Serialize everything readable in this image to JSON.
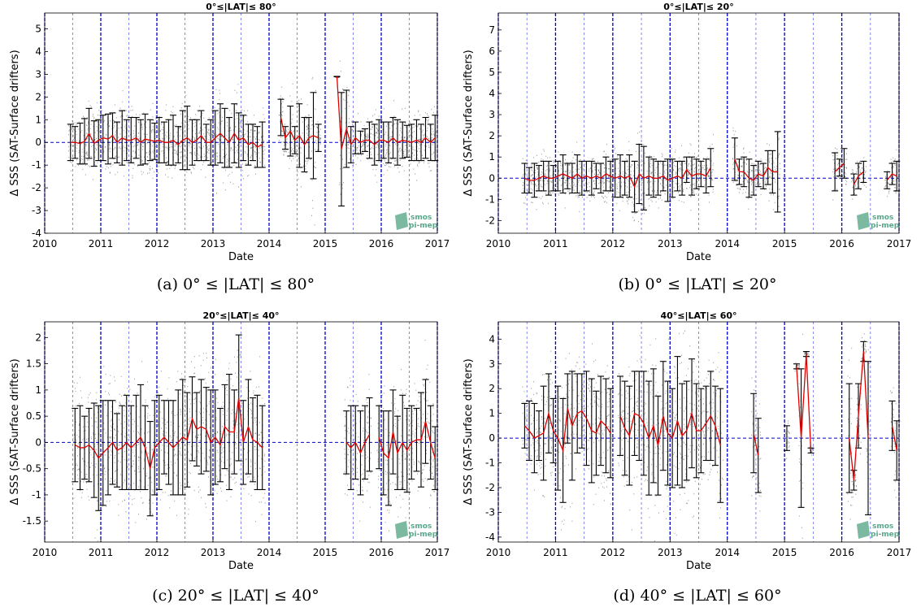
{
  "colors": {
    "mean": "#e00000",
    "error_bar": "#000000",
    "scatter": "#555555",
    "year_line": "#0000cc",
    "half_year_line": "#6a6aee",
    "zero_line": "#0000cc",
    "logo": "#5aa88a"
  },
  "logo": {
    "line1": "smos",
    "line2": "pi-mep"
  },
  "panels": [
    {
      "caption": "(a) 0° ≤ |LAT| ≤ 80°",
      "chart_data": {
        "type": "scatter",
        "title": "0°≤|LAT|≤ 80°",
        "xlabel": "Date",
        "ylabel": "Δ SSS (SAT-Surface drifters)",
        "xlim": [
          2010,
          2017
        ],
        "ylim": [
          -4,
          5.7
        ],
        "xticks": [
          "2010",
          "2011",
          "2012",
          "2013",
          "2014",
          "2015",
          "2016",
          "2017"
        ],
        "yticks": [
          "-4",
          "-3",
          "-2",
          "-1",
          "0",
          "1",
          "2",
          "3",
          "4",
          "5"
        ],
        "grid": "vertical dashed lines at each year and half-year, horizontal dashed zero line",
        "series": [
          {
            "name": "monthly mean",
            "x": [
              2010.46,
              2010.54,
              2010.63,
              2010.71,
              2010.79,
              2010.88,
              2010.96,
              2011.04,
              2011.13,
              2011.21,
              2011.29,
              2011.38,
              2011.46,
              2011.54,
              2011.63,
              2011.71,
              2011.79,
              2011.88,
              2011.96,
              2012.04,
              2012.13,
              2012.21,
              2012.29,
              2012.38,
              2012.46,
              2012.54,
              2012.63,
              2012.71,
              2012.79,
              2012.88,
              2012.96,
              2013.04,
              2013.13,
              2013.21,
              2013.29,
              2013.38,
              2013.46,
              2013.54,
              2013.63,
              2013.71,
              2013.79,
              2013.88,
              2014.21,
              2014.29,
              2014.38,
              2014.46,
              2014.54,
              2014.63,
              2014.71,
              2014.79,
              2014.88,
              2015.21,
              2015.29,
              2015.38,
              2015.46,
              2015.54,
              2015.63,
              2015.71,
              2015.79,
              2015.88,
              2015.96,
              2016.04,
              2016.13,
              2016.21,
              2016.29,
              2016.38,
              2016.46,
              2016.54,
              2016.63,
              2016.71,
              2016.79,
              2016.88,
              2016.96
            ],
            "y": [
              0.0,
              0.0,
              -0.05,
              0.05,
              0.4,
              -0.05,
              0.1,
              0.2,
              0.15,
              0.3,
              0.0,
              0.2,
              0.1,
              0.1,
              0.2,
              0.0,
              0.15,
              0.1,
              0.05,
              0.1,
              0.0,
              0.0,
              0.1,
              -0.1,
              0.1,
              0.2,
              0.0,
              0.1,
              0.3,
              0.0,
              0.0,
              0.2,
              0.4,
              0.2,
              0.0,
              0.4,
              0.1,
              0.2,
              -0.1,
              0.0,
              -0.2,
              -0.1,
              1.1,
              0.2,
              0.5,
              0.1,
              0.3,
              -0.1,
              0.2,
              0.3,
              0.2,
              2.9,
              -0.3,
              0.6,
              -0.1,
              0.2,
              0.0,
              0.1,
              0.1,
              -0.1,
              0.1,
              0.1,
              0.0,
              0.2,
              0.0,
              0.1,
              0.05,
              0.0,
              0.1,
              0.0,
              0.2,
              0.0,
              0.2
            ]
          },
          {
            "name": "std error bars",
            "half_width": [
              0.8,
              0.7,
              0.9,
              1.0,
              1.1,
              1.0,
              0.9,
              1.0,
              1.1,
              1.0,
              0.9,
              1.2,
              0.9,
              1.0,
              0.9,
              1.0,
              1.1,
              0.9,
              0.8,
              1.0,
              0.9,
              1.0,
              1.1,
              0.8,
              1.3,
              1.4,
              1.0,
              0.9,
              1.1,
              0.8,
              1.0,
              1.2,
              1.3,
              1.3,
              1.1,
              1.3,
              1.2,
              1.0,
              0.9,
              0.8,
              0.9,
              1.0,
              0.8,
              0.5,
              1.1,
              0.6,
              1.4,
              1.2,
              0.9,
              1.9,
              0.6,
              0.01,
              2.5,
              1.7,
              0.8,
              0.7,
              0.5,
              0.5,
              0.8,
              0.9,
              0.9,
              0.8,
              0.9,
              0.9,
              1.0,
              0.8,
              0.7,
              0.8,
              0.9,
              0.8,
              0.9,
              0.8,
              1.0
            ]
          }
        ]
      }
    },
    {
      "caption": "(b) 0° ≤ |LAT| ≤ 20°",
      "chart_data": {
        "type": "scatter",
        "title": "0°≤|LAT|≤ 20°",
        "xlabel": "Date",
        "ylabel": "Δ SSS (SAT-Surface drifters)",
        "xlim": [
          2010,
          2017
        ],
        "ylim": [
          -2.6,
          7.8
        ],
        "xticks": [
          "2010",
          "2011",
          "2012",
          "2013",
          "2014",
          "2015",
          "2016",
          "2017"
        ],
        "yticks": [
          "-2",
          "-1",
          "0",
          "1",
          "2",
          "3",
          "4",
          "5",
          "6",
          "7"
        ],
        "grid": "vertical dashed lines at each year and half-year, horizontal dashed zero line",
        "series": [
          {
            "name": "monthly mean",
            "x": [
              2010.46,
              2010.54,
              2010.63,
              2010.71,
              2010.79,
              2010.88,
              2010.96,
              2011.04,
              2011.13,
              2011.21,
              2011.29,
              2011.38,
              2011.46,
              2011.54,
              2011.63,
              2011.71,
              2011.79,
              2011.88,
              2011.96,
              2012.04,
              2012.13,
              2012.21,
              2012.29,
              2012.38,
              2012.46,
              2012.54,
              2012.63,
              2012.71,
              2012.79,
              2012.88,
              2012.96,
              2013.04,
              2013.13,
              2013.21,
              2013.29,
              2013.38,
              2013.46,
              2013.54,
              2013.63,
              2013.71,
              2014.13,
              2014.21,
              2014.29,
              2014.38,
              2014.46,
              2014.54,
              2014.63,
              2014.71,
              2014.79,
              2014.88,
              2015.88,
              2015.96,
              2016.04,
              2016.21,
              2016.29,
              2016.38,
              2016.79,
              2016.88,
              2016.96
            ],
            "y": [
              0.0,
              -0.1,
              -0.1,
              0.0,
              0.1,
              0.0,
              0.0,
              0.1,
              0.2,
              0.1,
              0.0,
              0.2,
              0.0,
              0.1,
              0.0,
              0.1,
              0.0,
              0.2,
              0.1,
              0.0,
              0.1,
              0.0,
              0.1,
              -0.4,
              0.2,
              0.0,
              0.1,
              0.0,
              0.0,
              0.1,
              -0.1,
              0.0,
              0.1,
              0.0,
              0.4,
              0.1,
              0.2,
              0.2,
              0.1,
              0.5,
              0.9,
              0.3,
              0.3,
              0.0,
              -0.1,
              0.2,
              0.1,
              0.5,
              0.3,
              0.3,
              0.3,
              0.5,
              0.7,
              -0.3,
              0.1,
              0.3,
              -0.1,
              0.2,
              0.1
            ]
          },
          {
            "name": "std error bars",
            "half_width": [
              0.7,
              0.6,
              0.8,
              0.6,
              0.7,
              0.8,
              0.6,
              0.7,
              0.9,
              0.6,
              0.7,
              0.9,
              0.8,
              0.7,
              0.8,
              0.6,
              0.7,
              0.8,
              0.7,
              0.9,
              1.0,
              0.8,
              1.0,
              1.2,
              1.4,
              1.5,
              0.9,
              0.9,
              0.8,
              0.7,
              1.0,
              0.9,
              0.7,
              0.8,
              0.6,
              0.9,
              0.7,
              0.6,
              0.8,
              0.9,
              1.0,
              0.6,
              0.7,
              0.9,
              0.7,
              0.6,
              0.6,
              0.8,
              1.0,
              1.9,
              0.9,
              0.4,
              0.7,
              0.5,
              0.6,
              0.5,
              0.4,
              0.5,
              0.7
            ]
          }
        ]
      }
    },
    {
      "caption": "(c) 20° ≤ |LAT| ≤ 40°",
      "chart_data": {
        "type": "scatter",
        "title": "20°≤|LAT|≤ 40°",
        "xlabel": "Date",
        "ylabel": "Δ SSS (SAT-Surface drifters)",
        "xlim": [
          2010,
          2017
        ],
        "ylim": [
          -1.9,
          2.3
        ],
        "xticks": [
          "2010",
          "2011",
          "2012",
          "2013",
          "2014",
          "2015",
          "2016",
          "2017"
        ],
        "yticks": [
          "-1.5",
          "-1",
          "-0.5",
          "0",
          "0.5",
          "1",
          "1.5",
          "2"
        ],
        "grid": "vertical dashed lines at each year and half-year, horizontal dashed zero line",
        "series": [
          {
            "name": "monthly mean",
            "x": [
              2010.54,
              2010.63,
              2010.71,
              2010.79,
              2010.88,
              2010.96,
              2011.04,
              2011.13,
              2011.21,
              2011.29,
              2011.38,
              2011.46,
              2011.54,
              2011.63,
              2011.71,
              2011.79,
              2011.88,
              2011.96,
              2012.04,
              2012.13,
              2012.21,
              2012.29,
              2012.38,
              2012.46,
              2012.54,
              2012.63,
              2012.71,
              2012.79,
              2012.88,
              2012.96,
              2013.04,
              2013.13,
              2013.21,
              2013.29,
              2013.38,
              2013.46,
              2013.54,
              2013.63,
              2013.71,
              2013.79,
              2013.88,
              2015.38,
              2015.46,
              2015.54,
              2015.63,
              2015.71,
              2015.79,
              2015.96,
              2016.04,
              2016.13,
              2016.21,
              2016.29,
              2016.38,
              2016.46,
              2016.54,
              2016.63,
              2016.71,
              2016.79,
              2016.88,
              2016.96
            ],
            "y": [
              -0.05,
              -0.1,
              -0.1,
              -0.05,
              -0.15,
              -0.3,
              -0.2,
              -0.1,
              0.0,
              -0.15,
              -0.1,
              0.0,
              -0.1,
              0.0,
              0.1,
              -0.1,
              -0.5,
              -0.1,
              0.0,
              0.1,
              0.0,
              -0.1,
              0.0,
              0.1,
              0.05,
              0.45,
              0.25,
              0.3,
              0.25,
              0.0,
              0.1,
              -0.05,
              0.3,
              0.2,
              0.2,
              0.85,
              0.0,
              0.3,
              0.05,
              0.0,
              -0.1,
              0.0,
              -0.1,
              0.0,
              -0.2,
              0.0,
              0.15,
              0.1,
              -0.2,
              -0.3,
              0.2,
              -0.2,
              0.0,
              -0.15,
              0.0,
              0.05,
              0.05,
              0.4,
              0.0,
              -0.3
            ]
          },
          {
            "name": "std error bars",
            "half_width": [
              0.7,
              0.8,
              0.6,
              0.7,
              0.9,
              1.0,
              1.0,
              0.9,
              0.8,
              0.7,
              0.8,
              0.9,
              0.8,
              0.9,
              1.0,
              0.8,
              0.9,
              0.9,
              0.9,
              0.7,
              0.8,
              0.9,
              1.0,
              1.1,
              0.9,
              0.8,
              0.7,
              0.9,
              0.8,
              1.0,
              0.9,
              0.7,
              0.8,
              1.1,
              0.8,
              1.2,
              0.8,
              0.9,
              0.8,
              0.9,
              0.8,
              0.6,
              0.8,
              0.7,
              0.8,
              0.7,
              0.7,
              0.6,
              0.8,
              0.9,
              0.8,
              0.7,
              0.9,
              0.8,
              0.7,
              0.6,
              0.9,
              0.8,
              0.7,
              0.6
            ]
          }
        ]
      }
    },
    {
      "caption": "(d) 40° ≤ |LAT| ≤ 60°",
      "chart_data": {
        "type": "scatter",
        "title": "40°≤|LAT|≤ 60°",
        "xlabel": "Date",
        "ylabel": "Δ SSS (SAT-Surface drifters)",
        "xlim": [
          2010,
          2017
        ],
        "ylim": [
          -4.2,
          4.7
        ],
        "xticks": [
          "2010",
          "2011",
          "2012",
          "2013",
          "2014",
          "2015",
          "2016",
          "2017"
        ],
        "yticks": [
          "-4",
          "-3",
          "-2",
          "-1",
          "0",
          "1",
          "2",
          "3",
          "4"
        ],
        "grid": "vertical dashed lines at each year and half-year, horizontal dashed zero line",
        "series": [
          {
            "name": "monthly mean",
            "x": [
              2010.46,
              2010.54,
              2010.63,
              2010.71,
              2010.79,
              2010.88,
              2010.96,
              2011.04,
              2011.13,
              2011.21,
              2011.29,
              2011.38,
              2011.46,
              2011.54,
              2011.63,
              2011.71,
              2011.79,
              2011.88,
              2011.96,
              2012.13,
              2012.21,
              2012.29,
              2012.38,
              2012.46,
              2012.54,
              2012.63,
              2012.71,
              2012.79,
              2012.88,
              2012.96,
              2013.04,
              2013.13,
              2013.21,
              2013.29,
              2013.38,
              2013.46,
              2013.54,
              2013.63,
              2013.71,
              2013.79,
              2013.88,
              2014.46,
              2014.54,
              2015.04,
              2015.21,
              2015.29,
              2015.38,
              2015.46,
              2016.13,
              2016.21,
              2016.29,
              2016.38,
              2016.46,
              2016.88,
              2016.96
            ],
            "y": [
              0.5,
              0.3,
              0.0,
              0.1,
              0.2,
              1.0,
              0.3,
              0.0,
              -0.5,
              1.2,
              0.5,
              1.0,
              1.1,
              0.8,
              0.3,
              0.2,
              0.7,
              0.5,
              0.2,
              0.9,
              0.4,
              0.1,
              1.0,
              0.9,
              0.6,
              0.0,
              0.5,
              -0.3,
              0.9,
              0.2,
              0.0,
              0.7,
              0.1,
              0.3,
              1.0,
              0.3,
              0.3,
              0.6,
              0.9,
              0.5,
              -0.3,
              0.2,
              -0.7,
              0.0,
              2.9,
              0.0,
              3.4,
              -0.5,
              0.0,
              -1.7,
              0.9,
              3.5,
              0.0,
              0.5,
              -0.5
            ]
          },
          {
            "name": "std error bars",
            "half_width": [
              0.9,
              1.2,
              1.4,
              1.0,
              1.9,
              1.6,
              1.3,
              2.1,
              2.1,
              1.4,
              2.2,
              1.6,
              1.5,
              1.9,
              2.1,
              1.7,
              1.8,
              1.9,
              1.8,
              1.6,
              1.9,
              2.0,
              1.7,
              1.8,
              2.1,
              2.3,
              2.3,
              2.0,
              2.2,
              2.1,
              2.0,
              2.6,
              2.1,
              2.0,
              2.2,
              1.9,
              1.7,
              1.5,
              1.8,
              1.6,
              2.3,
              1.6,
              1.5,
              0.5,
              0.1,
              2.8,
              0.1,
              0.1,
              2.2,
              0.4,
              1.3,
              0.4,
              3.1,
              1.0,
              1.2
            ]
          }
        ]
      }
    }
  ]
}
